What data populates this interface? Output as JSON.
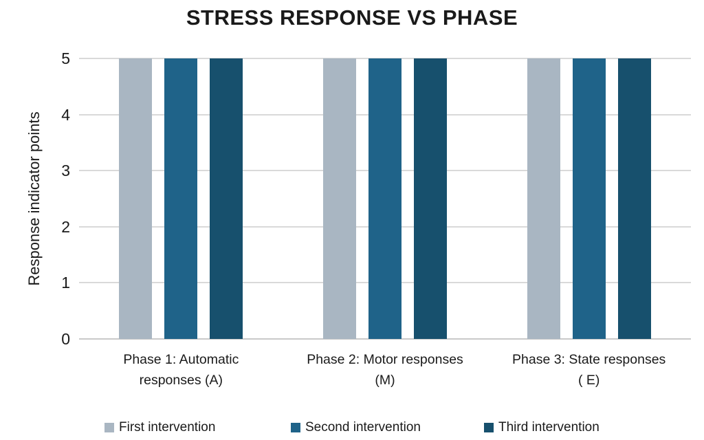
{
  "chart_data": {
    "type": "bar",
    "title": "STRESS RESPONSE VS PHASE",
    "xlabel": "",
    "ylabel": "Response indicator points",
    "ylim": [
      0,
      5
    ],
    "yticks": [
      0,
      1,
      2,
      3,
      4,
      5
    ],
    "grid": true,
    "legend_position": "bottom",
    "categories": [
      "Phase 1: Automatic responses (A)",
      "Phase 2: Motor responses (M)",
      "Phase 3: State responses ( E)"
    ],
    "categories_lines": [
      [
        "Phase 1: Automatic",
        "responses (A)"
      ],
      [
        "Phase 2: Motor responses",
        "(M)"
      ],
      [
        "Phase 3: State responses",
        "( E)"
      ]
    ],
    "series": [
      {
        "name": "First intervention",
        "color": "#a9b6c2",
        "values": [
          5,
          5,
          5
        ]
      },
      {
        "name": "Second intervention",
        "color": "#1f6389",
        "values": [
          5,
          5,
          5
        ]
      },
      {
        "name": "Third intervention",
        "color": "#17506d",
        "values": [
          5,
          5,
          5
        ]
      }
    ],
    "colors": {
      "gridline": "#d9d9d9",
      "baseline": "#c9c9c9",
      "text": "#1a1a1a",
      "background": "#ffffff"
    }
  }
}
